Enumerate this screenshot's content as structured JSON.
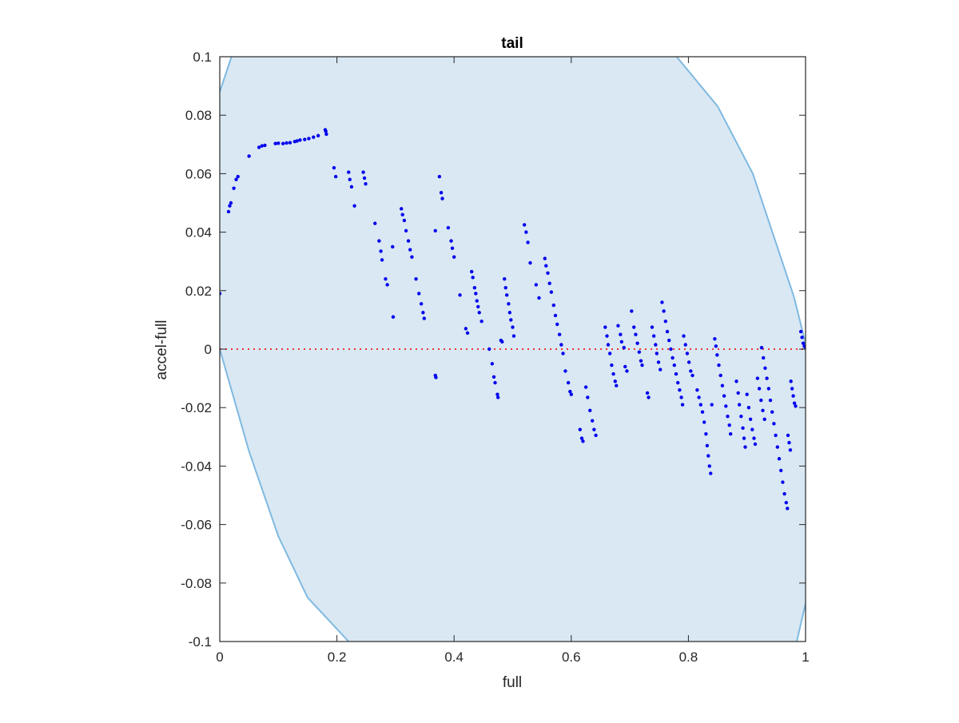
{
  "chart_data": {
    "type": "scatter",
    "title": "tail",
    "xlabel": "full",
    "ylabel": "accel-full",
    "xlim": [
      0,
      1
    ],
    "ylim": [
      -0.1,
      0.1
    ],
    "xticks": [
      0,
      0.2,
      0.4,
      0.6,
      0.8,
      1
    ],
    "xtick_labels": [
      "0",
      "0.2",
      "0.4",
      "0.6",
      "0.8",
      "1"
    ],
    "yticks": [
      -0.1,
      -0.08,
      -0.06,
      -0.04,
      -0.02,
      0,
      0.02,
      0.04,
      0.06,
      0.08,
      0.1
    ],
    "ytick_labels": [
      "-0.1",
      "-0.08",
      "-0.06",
      "-0.04",
      "-0.02",
      "0",
      "0.02",
      "0.04",
      "0.06",
      "0.08",
      "0.1"
    ],
    "grid": false,
    "colors": {
      "points": "#0000ee",
      "band_fill": "#d9e8f3",
      "band_edge": "#7fb9e1",
      "zero_line": "#ee3333",
      "axes": "#262626"
    },
    "zero_line": {
      "y": 0,
      "style": "dotted"
    },
    "band": {
      "lower": [
        [
          0,
          0
        ],
        [
          0.05,
          -0.035
        ],
        [
          0.1,
          -0.064
        ],
        [
          0.15,
          -0.085
        ],
        [
          0.22,
          -0.1
        ]
      ],
      "upper": [
        [
          0,
          0.088
        ],
        [
          0.02,
          0.1
        ]
      ],
      "right_upper": [
        [
          0.78,
          0.1
        ],
        [
          0.85,
          0.083
        ],
        [
          0.91,
          0.06
        ],
        [
          0.95,
          0.036
        ],
        [
          0.98,
          0.018
        ],
        [
          1,
          0.002
        ]
      ],
      "right_lower": [
        [
          0.985,
          -0.1
        ],
        [
          1,
          -0.087
        ]
      ]
    },
    "series": [
      {
        "values": [
          [
            0,
            0.019
          ],
          [
            0.015,
            0.047
          ],
          [
            0.017,
            0.049
          ],
          [
            0.019,
            0.05
          ],
          [
            0.024,
            0.055
          ],
          [
            0.028,
            0.058
          ],
          [
            0.031,
            0.059
          ],
          [
            0.05,
            0.066
          ],
          [
            0.067,
            0.069
          ],
          [
            0.072,
            0.0695
          ],
          [
            0.077,
            0.0697
          ],
          [
            0.095,
            0.0703
          ],
          [
            0.1,
            0.0704
          ],
          [
            0.108,
            0.0703
          ],
          [
            0.114,
            0.0705
          ],
          [
            0.12,
            0.0706
          ],
          [
            0.128,
            0.071
          ],
          [
            0.132,
            0.0712
          ],
          [
            0.137,
            0.0715
          ],
          [
            0.145,
            0.0717
          ],
          [
            0.152,
            0.072
          ],
          [
            0.16,
            0.0725
          ],
          [
            0.168,
            0.073
          ],
          [
            0.18,
            0.075
          ],
          [
            0.181,
            0.0745
          ],
          [
            0.182,
            0.0735
          ],
          [
            0.195,
            0.062
          ],
          [
            0.198,
            0.059
          ],
          [
            0.22,
            0.0605
          ],
          [
            0.222,
            0.058
          ],
          [
            0.225,
            0.0555
          ],
          [
            0.23,
            0.049
          ],
          [
            0.245,
            0.0605
          ],
          [
            0.247,
            0.0585
          ],
          [
            0.249,
            0.0565
          ],
          [
            0.265,
            0.043
          ],
          [
            0.272,
            0.037
          ],
          [
            0.275,
            0.0335
          ],
          [
            0.277,
            0.0305
          ],
          [
            0.283,
            0.024
          ],
          [
            0.286,
            0.022
          ],
          [
            0.295,
            0.035
          ],
          [
            0.296,
            0.011
          ],
          [
            0.31,
            0.048
          ],
          [
            0.312,
            0.046
          ],
          [
            0.315,
            0.044
          ],
          [
            0.318,
            0.0405
          ],
          [
            0.322,
            0.037
          ],
          [
            0.325,
            0.034
          ],
          [
            0.328,
            0.0315
          ],
          [
            0.335,
            0.024
          ],
          [
            0.34,
            0.019
          ],
          [
            0.344,
            0.0155
          ],
          [
            0.347,
            0.0125
          ],
          [
            0.349,
            0.0105
          ],
          [
            0.368,
            0.0405
          ],
          [
            0.368,
            -0.009
          ],
          [
            0.369,
            -0.0097
          ],
          [
            0.375,
            0.059
          ],
          [
            0.378,
            0.0535
          ],
          [
            0.38,
            0.0515
          ],
          [
            0.39,
            0.0415
          ],
          [
            0.395,
            0.037
          ],
          [
            0.397,
            0.0345
          ],
          [
            0.4,
            0.0315
          ],
          [
            0.41,
            0.0185
          ],
          [
            0.42,
            0.007
          ],
          [
            0.423,
            0.0055
          ],
          [
            0.43,
            0.0265
          ],
          [
            0.432,
            0.0245
          ],
          [
            0.435,
            0.021
          ],
          [
            0.437,
            0.019
          ],
          [
            0.439,
            0.0165
          ],
          [
            0.441,
            0.0145
          ],
          [
            0.443,
            0.0125
          ],
          [
            0.447,
            0.0095
          ],
          [
            0.46,
            0.0
          ],
          [
            0.465,
            -0.005
          ],
          [
            0.468,
            -0.0095
          ],
          [
            0.47,
            -0.0115
          ],
          [
            0.474,
            -0.0155
          ],
          [
            0.475,
            -0.0165
          ],
          [
            0.48,
            0.003
          ],
          [
            0.482,
            0.0025
          ],
          [
            0.486,
            0.024
          ],
          [
            0.488,
            0.021
          ],
          [
            0.49,
            0.0185
          ],
          [
            0.493,
            0.0155
          ],
          [
            0.495,
            0.0125
          ],
          [
            0.497,
            0.01
          ],
          [
            0.5,
            0.0075
          ],
          [
            0.502,
            0.0045
          ],
          [
            0.52,
            0.0425
          ],
          [
            0.523,
            0.04
          ],
          [
            0.526,
            0.0365
          ],
          [
            0.53,
            0.0295
          ],
          [
            0.54,
            0.022
          ],
          [
            0.545,
            0.0175
          ],
          [
            0.555,
            0.031
          ],
          [
            0.557,
            0.0285
          ],
          [
            0.56,
            0.026
          ],
          [
            0.563,
            0.0225
          ],
          [
            0.566,
            0.0195
          ],
          [
            0.57,
            0.015
          ],
          [
            0.573,
            0.0115
          ],
          [
            0.576,
            0.0085
          ],
          [
            0.58,
            0.005
          ],
          [
            0.583,
            0.0015
          ],
          [
            0.586,
            -0.0015
          ],
          [
            0.59,
            -0.0075
          ],
          [
            0.595,
            -0.0115
          ],
          [
            0.598,
            -0.0145
          ],
          [
            0.6,
            -0.0155
          ],
          [
            0.615,
            -0.0275
          ],
          [
            0.618,
            -0.0305
          ],
          [
            0.62,
            -0.0315
          ],
          [
            0.625,
            -0.013
          ],
          [
            0.628,
            -0.0165
          ],
          [
            0.632,
            -0.021
          ],
          [
            0.636,
            -0.0245
          ],
          [
            0.639,
            -0.0275
          ],
          [
            0.642,
            -0.0295
          ],
          [
            0.658,
            0.0075
          ],
          [
            0.661,
            0.0045
          ],
          [
            0.663,
            0.0015
          ],
          [
            0.666,
            -0.0015
          ],
          [
            0.669,
            -0.0055
          ],
          [
            0.672,
            -0.0085
          ],
          [
            0.675,
            -0.011
          ],
          [
            0.677,
            -0.0125
          ],
          [
            0.68,
            0.008
          ],
          [
            0.684,
            0.005
          ],
          [
            0.686,
            0.0025
          ],
          [
            0.69,
            0.0005
          ],
          [
            0.692,
            -0.006
          ],
          [
            0.695,
            -0.0075
          ],
          [
            0.703,
            0.013
          ],
          [
            0.707,
            0.0075
          ],
          [
            0.71,
            0.005
          ],
          [
            0.713,
            0.002
          ],
          [
            0.716,
            -0.001
          ],
          [
            0.719,
            -0.004
          ],
          [
            0.721,
            -0.0055
          ],
          [
            0.73,
            -0.015
          ],
          [
            0.732,
            -0.0165
          ],
          [
            0.738,
            0.0075
          ],
          [
            0.741,
            0.0045
          ],
          [
            0.744,
            0.0015
          ],
          [
            0.746,
            -0.0015
          ],
          [
            0.749,
            -0.0045
          ],
          [
            0.752,
            -0.007
          ],
          [
            0.755,
            0.016
          ],
          [
            0.758,
            0.013
          ],
          [
            0.761,
            0.0095
          ],
          [
            0.764,
            0.006
          ],
          [
            0.767,
            0.003
          ],
          [
            0.77,
            0.0
          ],
          [
            0.773,
            -0.003
          ],
          [
            0.776,
            -0.0055
          ],
          [
            0.779,
            -0.0085
          ],
          [
            0.782,
            -0.0115
          ],
          [
            0.785,
            -0.014
          ],
          [
            0.788,
            -0.0165
          ],
          [
            0.79,
            -0.019
          ],
          [
            0.792,
            0.0045
          ],
          [
            0.795,
            0.0015
          ],
          [
            0.798,
            -0.0015
          ],
          [
            0.801,
            -0.0045
          ],
          [
            0.804,
            -0.0075
          ],
          [
            0.807,
            -0.009
          ],
          [
            0.815,
            -0.014
          ],
          [
            0.818,
            -0.0165
          ],
          [
            0.821,
            -0.019
          ],
          [
            0.824,
            -0.0215
          ],
          [
            0.827,
            -0.025
          ],
          [
            0.83,
            -0.029
          ],
          [
            0.832,
            -0.033
          ],
          [
            0.834,
            -0.0365
          ],
          [
            0.836,
            -0.04
          ],
          [
            0.838,
            -0.0425
          ],
          [
            0.84,
            -0.019
          ],
          [
            0.845,
            0.0035
          ],
          [
            0.847,
            0.001
          ],
          [
            0.849,
            -0.002
          ],
          [
            0.852,
            -0.0055
          ],
          [
            0.855,
            -0.009
          ],
          [
            0.858,
            -0.0125
          ],
          [
            0.861,
            -0.016
          ],
          [
            0.864,
            -0.0195
          ],
          [
            0.867,
            -0.023
          ],
          [
            0.87,
            -0.026
          ],
          [
            0.872,
            -0.029
          ],
          [
            0.882,
            -0.011
          ],
          [
            0.885,
            -0.015
          ],
          [
            0.887,
            -0.019
          ],
          [
            0.89,
            -0.023
          ],
          [
            0.893,
            -0.027
          ],
          [
            0.895,
            -0.0305
          ],
          [
            0.897,
            -0.0335
          ],
          [
            0.9,
            -0.0155
          ],
          [
            0.903,
            -0.02
          ],
          [
            0.906,
            -0.024
          ],
          [
            0.909,
            -0.0275
          ],
          [
            0.912,
            -0.0305
          ],
          [
            0.914,
            -0.0325
          ],
          [
            0.918,
            -0.01
          ],
          [
            0.921,
            -0.0135
          ],
          [
            0.924,
            -0.0175
          ],
          [
            0.927,
            -0.021
          ],
          [
            0.93,
            -0.024
          ],
          [
            0.925,
            0.0005
          ],
          [
            0.928,
            -0.003
          ],
          [
            0.931,
            -0.0065
          ],
          [
            0.934,
            -0.01
          ],
          [
            0.937,
            -0.0135
          ],
          [
            0.94,
            -0.0175
          ],
          [
            0.943,
            -0.0215
          ],
          [
            0.946,
            -0.0255
          ],
          [
            0.949,
            -0.0295
          ],
          [
            0.952,
            -0.0335
          ],
          [
            0.955,
            -0.0375
          ],
          [
            0.958,
            -0.0415
          ],
          [
            0.961,
            -0.0455
          ],
          [
            0.964,
            -0.0495
          ],
          [
            0.967,
            -0.0525
          ],
          [
            0.969,
            -0.0545
          ],
          [
            0.97,
            -0.0295
          ],
          [
            0.972,
            -0.032
          ],
          [
            0.974,
            -0.0345
          ],
          [
            0.975,
            -0.011
          ],
          [
            0.977,
            -0.0135
          ],
          [
            0.979,
            -0.016
          ],
          [
            0.981,
            -0.0185
          ],
          [
            0.983,
            -0.0195
          ],
          [
            0.992,
            0.006
          ],
          [
            0.994,
            0.004
          ],
          [
            0.996,
            0.002
          ],
          [
            0.998,
            0.001
          ],
          [
            1,
            0.0005
          ]
        ]
      }
    ]
  }
}
